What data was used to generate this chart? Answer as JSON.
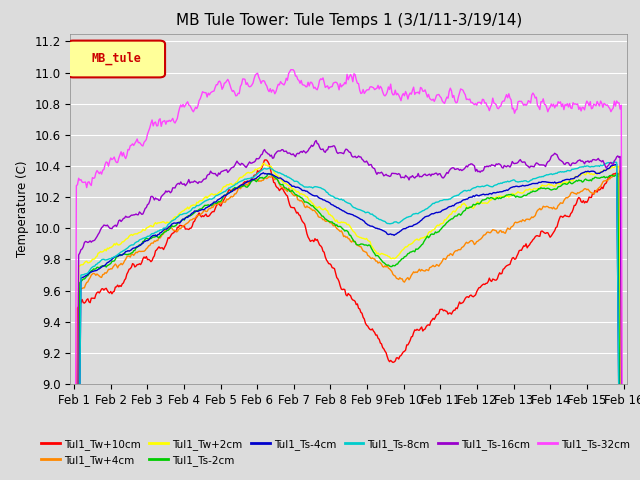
{
  "title": "MB Tule Tower: Tule Temps 1 (3/1/11-3/19/14)",
  "ylabel": "Temperature (C)",
  "ylim": [
    9.0,
    11.25
  ],
  "yticks": [
    9.0,
    9.2,
    9.4,
    9.6,
    9.8,
    10.0,
    10.2,
    10.4,
    10.6,
    10.8,
    11.0,
    11.2
  ],
  "xlabel_dates": [
    "Feb 1",
    "Feb 2",
    "Feb 3",
    "Feb 4",
    "Feb 5",
    "Feb 6",
    "Feb 7",
    "Feb 8",
    "Feb 9",
    "Feb 10",
    "Feb 11",
    "Feb 12",
    "Feb 13",
    "Feb 14",
    "Feb 15",
    "Feb 16"
  ],
  "n_points": 480,
  "background_color": "#dcdcdc",
  "plot_bg_color": "#dcdcdc",
  "grid_color": "#ffffff",
  "series": [
    {
      "name": "Tul1_Tw+10cm",
      "color": "#ff0000"
    },
    {
      "name": "Tul1_Tw+4cm",
      "color": "#ff8800"
    },
    {
      "name": "Tul1_Tw+2cm",
      "color": "#ffff00"
    },
    {
      "name": "Tul1_Ts-2cm",
      "color": "#00cc00"
    },
    {
      "name": "Tul1_Ts-4cm",
      "color": "#0000cc"
    },
    {
      "name": "Tul1_Ts-8cm",
      "color": "#00cccc"
    },
    {
      "name": "Tul1_Ts-16cm",
      "color": "#9900cc"
    },
    {
      "name": "Tul1_Ts-32cm",
      "color": "#ff44ff"
    }
  ],
  "legend_box": {
    "label": "MB_tule",
    "facecolor": "#ffff99",
    "edgecolor": "#cc0000",
    "textcolor": "#cc0000"
  },
  "title_fontsize": 11,
  "axis_fontsize": 8.5
}
